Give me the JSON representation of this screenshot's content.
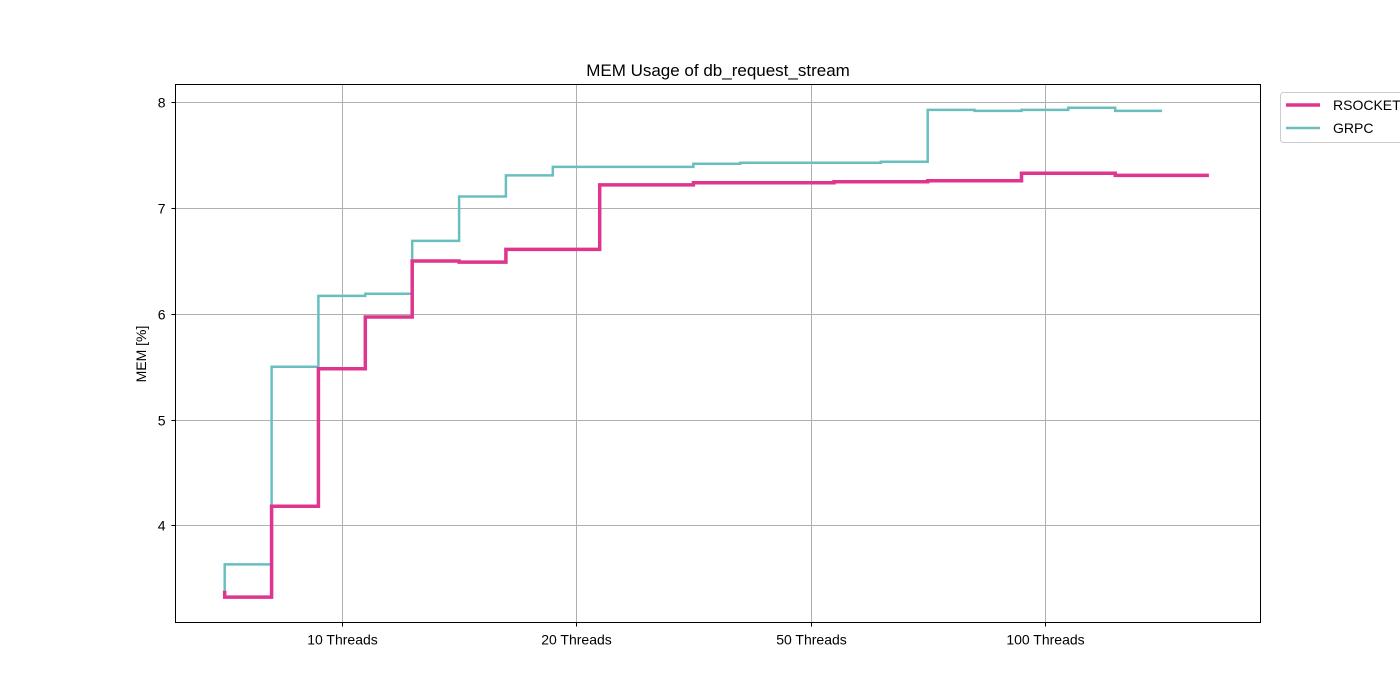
{
  "chart_data": {
    "type": "line",
    "title": "MEM Usage of db_request_stream",
    "xlabel": "",
    "ylabel": "MEM [%]",
    "x_ticks": [
      {
        "label": "10 Threads",
        "x": 10
      },
      {
        "label": "20 Threads",
        "x": 20
      },
      {
        "label": "50 Threads",
        "x": 30
      },
      {
        "label": "100 Threads",
        "x": 40
      }
    ],
    "y_ticks": [
      4,
      5,
      6,
      7,
      8
    ],
    "xlim": [
      2.9,
      49.2
    ],
    "ylim": [
      3.08,
      8.17
    ],
    "grid": true,
    "legend_position": "outside-top-right",
    "step": "post",
    "series": [
      {
        "name": "RSOCKET",
        "color": "#e0358f",
        "style": "thick",
        "points": [
          [
            5,
            3.38
          ],
          [
            5,
            3.32
          ],
          [
            6,
            3.32
          ],
          [
            7,
            3.32
          ],
          [
            7,
            4.18
          ],
          [
            8,
            4.18
          ],
          [
            9,
            5.48
          ],
          [
            10,
            5.48
          ],
          [
            11,
            5.97
          ],
          [
            12,
            5.97
          ],
          [
            13,
            6.5
          ],
          [
            14,
            6.5
          ],
          [
            15,
            6.49
          ],
          [
            16,
            6.49
          ],
          [
            17,
            6.61
          ],
          [
            18,
            6.61
          ],
          [
            19,
            6.61
          ],
          [
            20,
            6.61
          ],
          [
            21,
            7.22
          ],
          [
            22,
            7.22
          ],
          [
            23,
            7.22
          ],
          [
            24,
            7.22
          ],
          [
            25,
            7.24
          ],
          [
            26,
            7.24
          ],
          [
            27,
            7.24
          ],
          [
            28,
            7.24
          ],
          [
            29,
            7.24
          ],
          [
            30,
            7.24
          ],
          [
            31,
            7.25
          ],
          [
            32,
            7.25
          ],
          [
            33,
            7.25
          ],
          [
            34,
            7.25
          ],
          [
            35,
            7.26
          ],
          [
            36,
            7.26
          ],
          [
            37,
            7.26
          ],
          [
            38,
            7.26
          ],
          [
            39,
            7.33
          ],
          [
            40,
            7.33
          ],
          [
            41,
            7.33
          ],
          [
            42,
            7.33
          ],
          [
            43,
            7.31
          ],
          [
            44,
            7.31
          ],
          [
            45,
            7.31
          ],
          [
            46,
            7.31
          ],
          [
            47,
            7.31
          ]
        ]
      },
      {
        "name": "GRPC",
        "color": "#6abfbe",
        "style": "normal",
        "points": [
          [
            5,
            3.36
          ],
          [
            5,
            3.63
          ],
          [
            6,
            3.63
          ],
          [
            7,
            5.5
          ],
          [
            8,
            5.5
          ],
          [
            9,
            6.17
          ],
          [
            10,
            6.17
          ],
          [
            11,
            6.19
          ],
          [
            12,
            6.19
          ],
          [
            13,
            6.69
          ],
          [
            14,
            6.69
          ],
          [
            15,
            7.11
          ],
          [
            16,
            7.11
          ],
          [
            17,
            7.31
          ],
          [
            18,
            7.31
          ],
          [
            19,
            7.39
          ],
          [
            20,
            7.39
          ],
          [
            21,
            7.39
          ],
          [
            22,
            7.39
          ],
          [
            23,
            7.39
          ],
          [
            24,
            7.39
          ],
          [
            25,
            7.42
          ],
          [
            26,
            7.42
          ],
          [
            27,
            7.43
          ],
          [
            28,
            7.43
          ],
          [
            29,
            7.43
          ],
          [
            30,
            7.43
          ],
          [
            31,
            7.43
          ],
          [
            32,
            7.43
          ],
          [
            33,
            7.44
          ],
          [
            34,
            7.44
          ],
          [
            35,
            7.93
          ],
          [
            36,
            7.93
          ],
          [
            37,
            7.92
          ],
          [
            38,
            7.92
          ],
          [
            39,
            7.93
          ],
          [
            40,
            7.93
          ],
          [
            41,
            7.95
          ],
          [
            42,
            7.95
          ],
          [
            43,
            7.92
          ],
          [
            44,
            7.92
          ],
          [
            45,
            7.92
          ]
        ]
      }
    ]
  }
}
